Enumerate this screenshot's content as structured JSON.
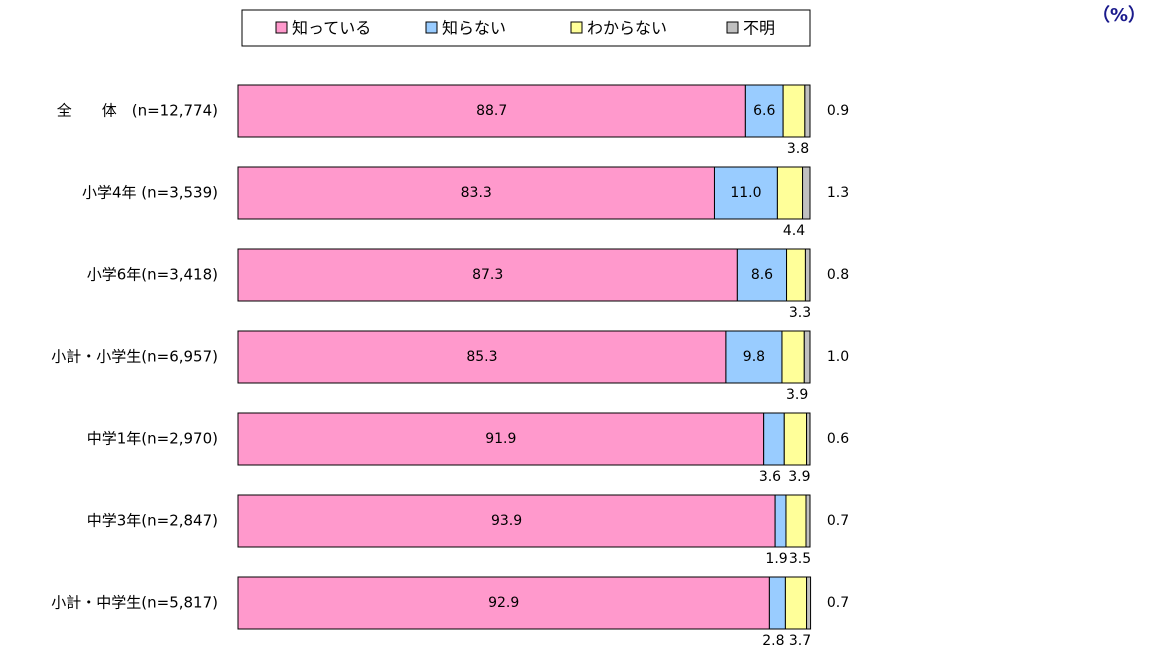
{
  "chart_data": {
    "type": "stacked-barh",
    "unit": "（%）",
    "categories": [
      "全　　体　(n=12,774)",
      "小学4年 (n=3,539)",
      "小学6年(n=3,418)",
      "小計・小学生(n=6,957)",
      "中学1年(n=2,970)",
      "中学3年(n=2,847)",
      "小計・中学生(n=5,817)"
    ],
    "xlim": [
      0,
      100
    ],
    "legend": "top",
    "series": [
      {
        "name": "知っている",
        "color": "#ff99cc",
        "values": [
          88.7,
          83.3,
          87.3,
          85.3,
          91.9,
          93.9,
          92.9
        ],
        "value_labels": [
          "88.7",
          "83.3",
          "87.3",
          "85.3",
          "91.9",
          "93.9",
          "92.9"
        ]
      },
      {
        "name": "知らない",
        "color": "#99ccff",
        "values": [
          6.6,
          11.0,
          8.6,
          9.8,
          3.6,
          1.9,
          2.8
        ],
        "value_labels": [
          "6.6",
          "11.0",
          "8.6",
          "9.8",
          "3.6",
          "1.9",
          "2.8"
        ]
      },
      {
        "name": "わからない",
        "color": "#ffff99",
        "values": [
          3.8,
          4.4,
          3.3,
          3.9,
          3.9,
          3.5,
          3.7
        ],
        "value_labels": [
          "3.8",
          "4.4",
          "3.3",
          "3.9",
          "3.9",
          "3.5",
          "3.7"
        ]
      },
      {
        "name": "不明",
        "color": "#c0c0c0",
        "values": [
          0.9,
          1.3,
          0.8,
          1.0,
          0.6,
          0.7,
          0.7
        ],
        "value_labels": [
          "0.9",
          "1.3",
          "0.8",
          "1.0",
          "0.6",
          "0.7",
          "0.7"
        ]
      }
    ]
  }
}
